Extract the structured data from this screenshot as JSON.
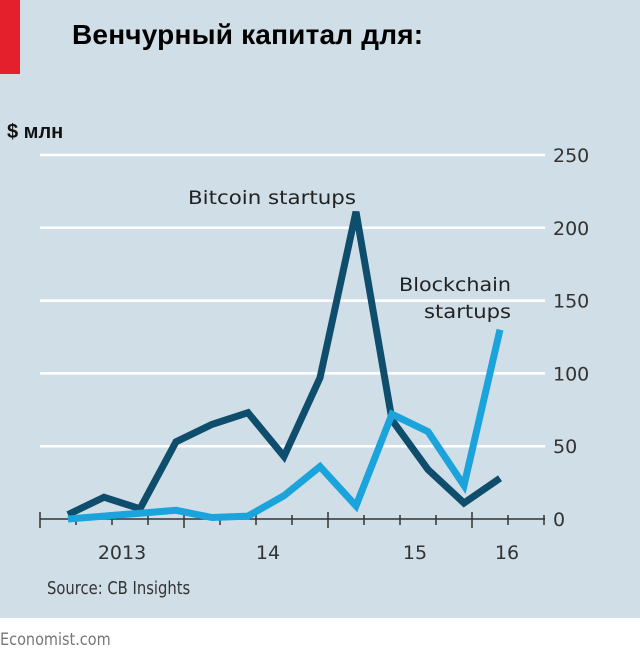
{
  "header": {
    "title": "Венчурный капитал для:",
    "unit": "$ млн"
  },
  "footer": {
    "source": "Source: CB Insights",
    "brand": "Economist.com"
  },
  "colors": {
    "panel": "#cfdee7",
    "accent": "#e3202b",
    "bitcoin": "#0e4d6b",
    "blockchain": "#1ba3dc",
    "grid": "#ffffff"
  },
  "chart_data": {
    "type": "line",
    "title": "Венчурный капитал для:",
    "ylabel": "$ млн",
    "xlabel": "",
    "ylim": [
      0,
      250
    ],
    "yticks": [
      "0",
      "50",
      "100",
      "150",
      "200",
      "250"
    ],
    "xtick_labels": [
      "2013",
      "14",
      "15",
      "16"
    ],
    "grid": true,
    "x": [
      "2012Q4",
      "2013Q1",
      "2013Q2",
      "2013Q3",
      "2013Q4",
      "2014Q1",
      "2014Q2",
      "2014Q3",
      "2014Q4",
      "2015Q1",
      "2015Q2",
      "2015Q3",
      "2015Q4"
    ],
    "series": [
      {
        "name": "Bitcoin startups",
        "values": [
          3,
          15,
          7,
          53,
          65,
          73,
          43,
          97,
          211,
          68,
          34,
          11,
          28
        ]
      },
      {
        "name": "Blockchain startups",
        "values": [
          0,
          2,
          4,
          6,
          1,
          2,
          16,
          36,
          9,
          72,
          60,
          23,
          130
        ]
      }
    ],
    "series_labels": {
      "bitcoin": "Bitcoin startups",
      "blockchain_line1": "Blockchain",
      "blockchain_line2": "startups"
    }
  }
}
